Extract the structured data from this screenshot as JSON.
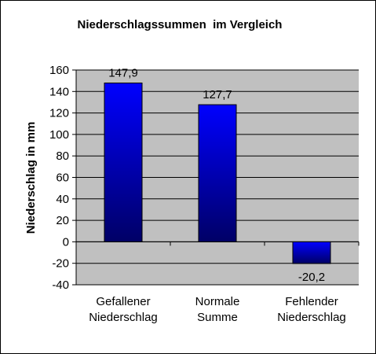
{
  "chart_data": {
    "type": "bar",
    "title": "Niederschlagssummen  im Vergleich",
    "xlabel": "",
    "ylabel": "Niederschlag in mm",
    "categories": [
      [
        "Gefallener",
        "Niederschlag"
      ],
      [
        "Normale",
        "Summe"
      ],
      [
        "Fehlender",
        "Niederschlag"
      ]
    ],
    "values": [
      147.9,
      127.7,
      -20.2
    ],
    "value_labels": [
      "147,9",
      "127,7",
      "-20,2"
    ],
    "ylim": [
      -40,
      160
    ],
    "yticks": [
      160,
      140,
      120,
      100,
      80,
      60,
      40,
      20,
      0,
      -20,
      -40
    ],
    "grid": true,
    "legend": "none",
    "colors": {
      "plot_background": "#c0c0c0",
      "bar_top": "#0000ff",
      "bar_bottom": "#000066",
      "gridline": "#000000"
    }
  }
}
